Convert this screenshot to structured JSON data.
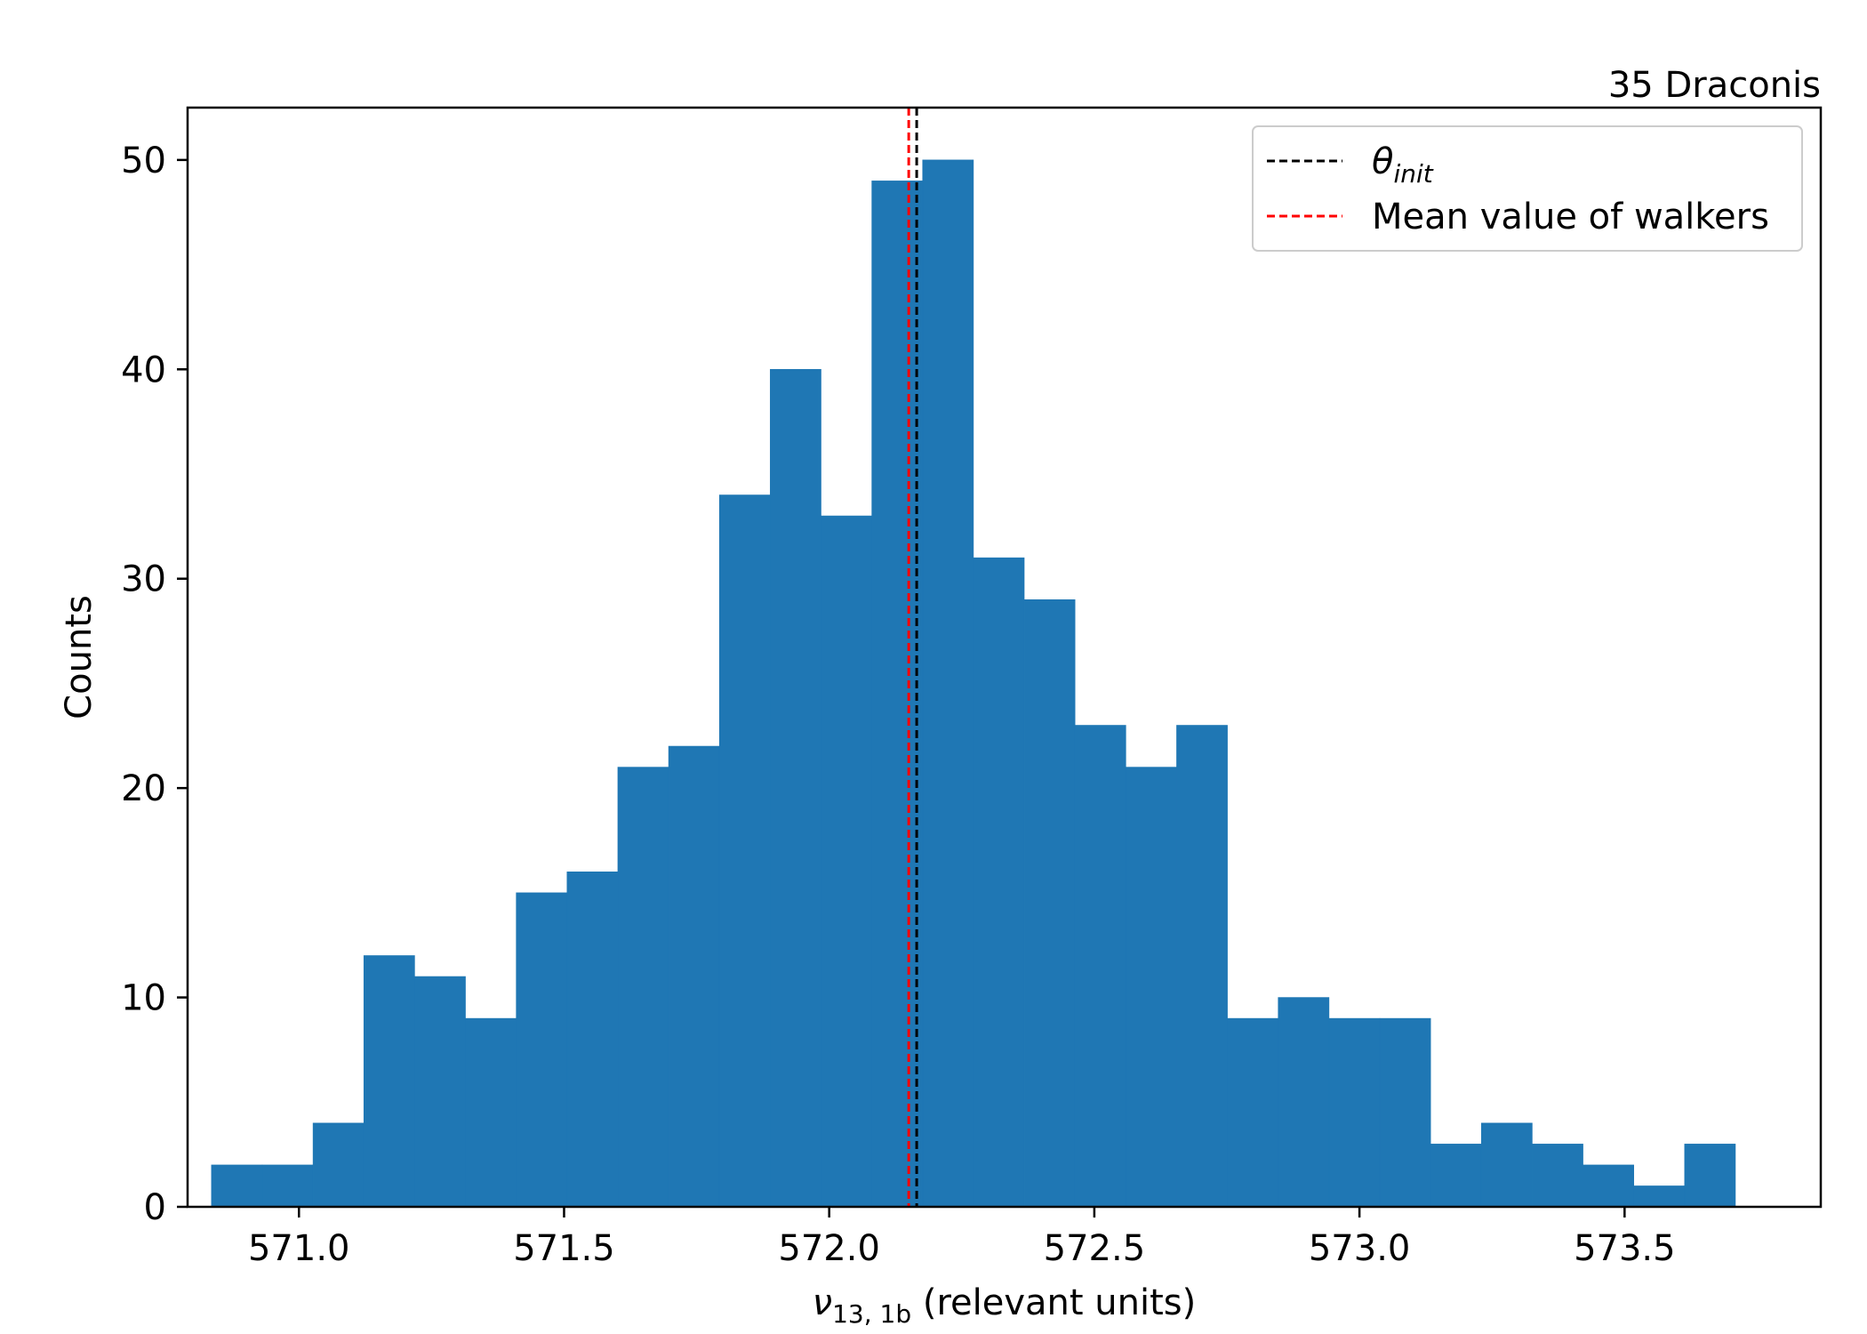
{
  "chart_data": {
    "type": "bar",
    "title": "35 Draconis",
    "xlabel": {
      "symbol": "ν",
      "subscript": "13, 1b",
      "text": " (relevant units)"
    },
    "ylabel": "Counts",
    "xlim": [
      570.79,
      573.87
    ],
    "ylim": [
      0,
      52.5
    ],
    "x_ticks": [
      571.0,
      571.5,
      572.0,
      572.5,
      573.0,
      573.5
    ],
    "x_tick_labels": [
      "571.0",
      "571.5",
      "572.0",
      "572.5",
      "573.0",
      "573.5"
    ],
    "y_ticks": [
      0,
      10,
      20,
      30,
      40,
      50
    ],
    "y_tick_labels": [
      "0",
      "10",
      "20",
      "30",
      "40",
      "50"
    ],
    "bin_start": 570.835,
    "bin_width": 0.0958,
    "counts": [
      2,
      2,
      4,
      12,
      11,
      9,
      15,
      16,
      21,
      22,
      34,
      40,
      33,
      49,
      50,
      31,
      29,
      23,
      21,
      23,
      9,
      10,
      9,
      9,
      3,
      4,
      3,
      2,
      1,
      3
    ],
    "bar_color": "#1f77b4",
    "grid": false,
    "vlines": [
      {
        "name": "θ",
        "subscript": "init",
        "x": 572.165,
        "color": "#000000",
        "style": "dashed"
      },
      {
        "name": "Mean value of walkers",
        "x": 572.15,
        "color": "#ff0000",
        "style": "dashed"
      }
    ],
    "legend_position": "top-right"
  }
}
